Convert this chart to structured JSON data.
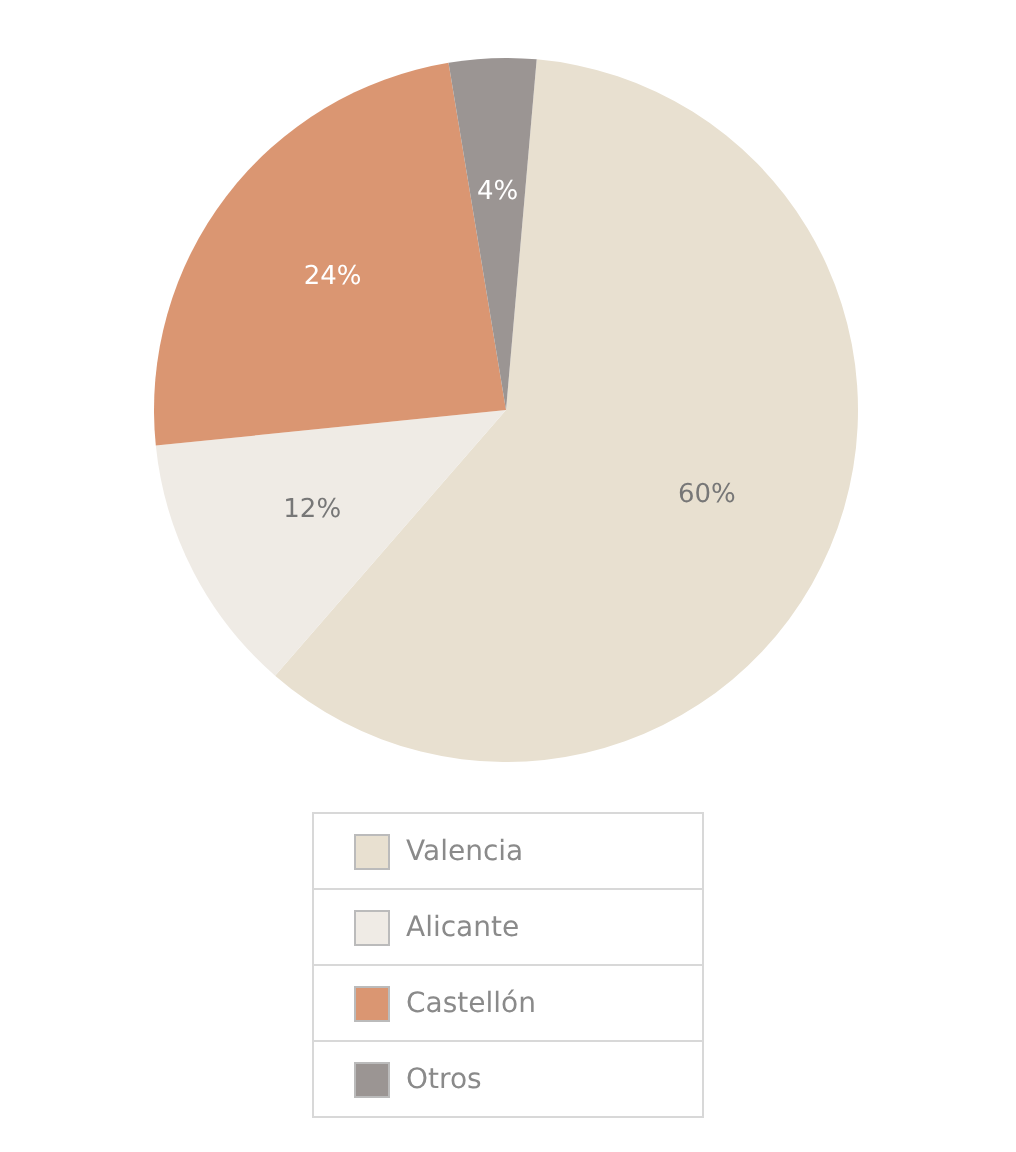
{
  "chart_data": {
    "type": "pie",
    "categories": [
      "Valencia",
      "Alicante",
      "Castellón",
      "Otros"
    ],
    "values": [
      60,
      12,
      24,
      4
    ],
    "colors": [
      "#e8e0d0",
      "#efebe5",
      "#da9672",
      "#9b9593"
    ],
    "value_labels": [
      "60%",
      "12%",
      "24%",
      "4%"
    ],
    "legend": "bottom"
  }
}
